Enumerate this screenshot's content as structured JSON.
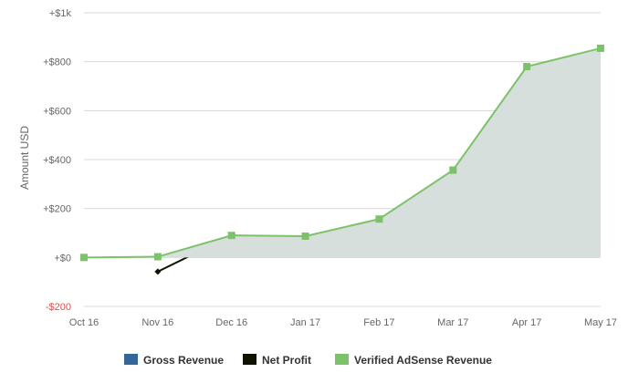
{
  "chart_data": {
    "type": "area",
    "ylabel": "Amount USD",
    "xlabel": "",
    "categories": [
      "Oct 16",
      "Nov 16",
      "Dec 16",
      "Jan 17",
      "Feb 17",
      "Mar 17",
      "Apr 17",
      "May 17"
    ],
    "ylim": [
      -200,
      1000
    ],
    "yticks": [
      {
        "value": 1000,
        "label": "+$1k"
      },
      {
        "value": 800,
        "label": "+$800"
      },
      {
        "value": 600,
        "label": "+$600"
      },
      {
        "value": 400,
        "label": "+$400"
      },
      {
        "value": 200,
        "label": "+$200"
      },
      {
        "value": 0,
        "label": "+$0"
      },
      {
        "value": -200,
        "label": "-$200"
      }
    ],
    "grid": true,
    "legend_position": "bottom-center",
    "series": [
      {
        "name": "Gross Revenue",
        "color": "#336699",
        "values": [
          null,
          null,
          null,
          null,
          null,
          null,
          null,
          null
        ]
      },
      {
        "name": "Net Profit",
        "color": "#111100",
        "values": [
          null,
          -58,
          90,
          null,
          null,
          null,
          null,
          null
        ]
      },
      {
        "name": "Verified AdSense Revenue",
        "color": "#7dc26b",
        "fill": "#d6dfdb",
        "values": [
          0,
          3,
          90,
          87,
          157,
          357,
          780,
          855
        ]
      }
    ]
  }
}
